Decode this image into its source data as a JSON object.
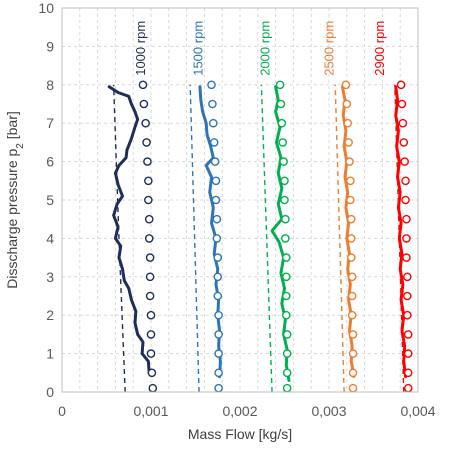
{
  "chart_data": {
    "type": "line",
    "xlabel": "Mass Flow [kg/s]",
    "ylabel_main": "Disscharge pressure p",
    "ylabel_sub": "2",
    "ylabel_unit": " [bar]",
    "xlim": [
      0,
      0.004
    ],
    "ylim": [
      0,
      10
    ],
    "x_ticks": [
      0,
      0.001,
      0.002,
      0.003,
      0.004
    ],
    "x_tick_labels": [
      "0",
      "0,001",
      "0,002",
      "0,003",
      "0,004"
    ],
    "y_ticks": [
      0,
      1,
      2,
      3,
      4,
      5,
      6,
      7,
      8,
      9,
      10
    ],
    "y_tick_labels": [
      "0",
      "1",
      "2",
      "3",
      "4",
      "5",
      "6",
      "7",
      "8",
      "9",
      "10"
    ],
    "grid": true,
    "series": [
      {
        "name": "1000 rpm",
        "color": "#1f2d5c",
        "label_x": 0.00093,
        "measured": [
          [
            0.00098,
            0.5
          ],
          [
            0.00097,
            0.8
          ],
          [
            0.0009,
            1.0
          ],
          [
            0.00091,
            1.3
          ],
          [
            0.00085,
            1.5
          ],
          [
            0.00082,
            1.8
          ],
          [
            0.00083,
            2.1
          ],
          [
            0.00078,
            2.4
          ],
          [
            0.00075,
            2.7
          ],
          [
            0.0007,
            2.9
          ],
          [
            0.00068,
            3.2
          ],
          [
            0.00064,
            3.5
          ],
          [
            0.00066,
            3.8
          ],
          [
            0.0006,
            4.0
          ],
          [
            0.00063,
            4.3
          ],
          [
            0.00058,
            4.6
          ],
          [
            0.00062,
            4.9
          ],
          [
            0.00068,
            5.1
          ],
          [
            0.00063,
            5.4
          ],
          [
            0.0006,
            5.7
          ],
          [
            0.00064,
            5.9
          ],
          [
            0.00072,
            6.1
          ],
          [
            0.00073,
            6.3
          ],
          [
            0.00078,
            6.6
          ],
          [
            0.00082,
            6.9
          ],
          [
            0.00085,
            7.1
          ],
          [
            0.00082,
            7.3
          ],
          [
            0.00078,
            7.5
          ],
          [
            0.00075,
            7.7
          ],
          [
            0.00063,
            7.8
          ],
          [
            0.00053,
            7.95
          ]
        ],
        "model_points": [
          [
            0.00102,
            0.1
          ],
          [
            0.00101,
            0.5
          ],
          [
            0.001,
            1.0
          ],
          [
            0.001,
            1.5
          ],
          [
            0.001,
            2.0
          ],
          [
            0.00099,
            2.5
          ],
          [
            0.00099,
            3.0
          ],
          [
            0.00099,
            3.5
          ],
          [
            0.00098,
            4.0
          ],
          [
            0.00098,
            4.5
          ],
          [
            0.00097,
            5.0
          ],
          [
            0.00097,
            5.5
          ],
          [
            0.00096,
            6.0
          ],
          [
            0.00095,
            6.5
          ],
          [
            0.00094,
            7.0
          ],
          [
            0.00092,
            7.5
          ],
          [
            0.00091,
            8.0
          ]
        ],
        "dashed": [
          [
            0.00071,
            0.0
          ],
          [
            0.00064,
            4.0
          ],
          [
            0.00058,
            8.0
          ]
        ]
      },
      {
        "name": "1500 rpm",
        "color": "#2e75b6",
        "label_x": 0.00158,
        "measured": [
          [
            0.00177,
            0.4
          ],
          [
            0.00178,
            0.8
          ],
          [
            0.00176,
            1.2
          ],
          [
            0.00177,
            1.6
          ],
          [
            0.00175,
            2.0
          ],
          [
            0.00176,
            2.4
          ],
          [
            0.00173,
            2.8
          ],
          [
            0.00175,
            3.2
          ],
          [
            0.00171,
            3.6
          ],
          [
            0.00173,
            4.0
          ],
          [
            0.00168,
            4.4
          ],
          [
            0.0017,
            4.8
          ],
          [
            0.00166,
            5.2
          ],
          [
            0.00168,
            5.6
          ],
          [
            0.00162,
            5.9
          ],
          [
            0.0017,
            6.1
          ],
          [
            0.00167,
            6.4
          ],
          [
            0.00163,
            6.7
          ],
          [
            0.00162,
            7.0
          ],
          [
            0.00158,
            7.3
          ],
          [
            0.00156,
            7.6
          ],
          [
            0.00155,
            7.95
          ]
        ],
        "model_points": [
          [
            0.00176,
            0.1
          ],
          [
            0.00176,
            0.5
          ],
          [
            0.00176,
            1.0
          ],
          [
            0.00176,
            1.5
          ],
          [
            0.00176,
            2.0
          ],
          [
            0.00175,
            2.5
          ],
          [
            0.00175,
            3.0
          ],
          [
            0.00175,
            3.5
          ],
          [
            0.00174,
            4.0
          ],
          [
            0.00174,
            4.5
          ],
          [
            0.00173,
            5.0
          ],
          [
            0.00173,
            5.5
          ],
          [
            0.00172,
            6.0
          ],
          [
            0.00171,
            6.5
          ],
          [
            0.0017,
            7.0
          ],
          [
            0.00169,
            7.5
          ],
          [
            0.00168,
            8.0
          ]
        ],
        "dashed": [
          [
            0.00154,
            0.0
          ],
          [
            0.00149,
            4.0
          ],
          [
            0.00144,
            8.0
          ]
        ]
      },
      {
        "name": "2000 rpm",
        "color": "#00b050",
        "label_x": 0.00233,
        "measured": [
          [
            0.00255,
            0.3
          ],
          [
            0.00252,
            0.7
          ],
          [
            0.00253,
            1.1
          ],
          [
            0.00249,
            1.5
          ],
          [
            0.00251,
            1.9
          ],
          [
            0.00247,
            2.3
          ],
          [
            0.0025,
            2.7
          ],
          [
            0.00246,
            3.1
          ],
          [
            0.00249,
            3.5
          ],
          [
            0.00244,
            3.9
          ],
          [
            0.00236,
            4.2
          ],
          [
            0.00247,
            4.5
          ],
          [
            0.00243,
            4.9
          ],
          [
            0.00247,
            5.3
          ],
          [
            0.00243,
            5.7
          ],
          [
            0.00246,
            6.1
          ],
          [
            0.00241,
            6.5
          ],
          [
            0.00245,
            6.9
          ],
          [
            0.0024,
            7.3
          ],
          [
            0.00243,
            7.6
          ],
          [
            0.0024,
            7.95
          ]
        ],
        "model_points": [
          [
            0.00253,
            0.1
          ],
          [
            0.00253,
            0.5
          ],
          [
            0.00253,
            1.0
          ],
          [
            0.00253,
            1.5
          ],
          [
            0.00252,
            2.0
          ],
          [
            0.00252,
            2.5
          ],
          [
            0.00252,
            3.0
          ],
          [
            0.00252,
            3.5
          ],
          [
            0.00251,
            4.0
          ],
          [
            0.00251,
            4.5
          ],
          [
            0.0025,
            5.0
          ],
          [
            0.0025,
            5.5
          ],
          [
            0.00249,
            6.0
          ],
          [
            0.00248,
            6.5
          ],
          [
            0.00247,
            7.0
          ],
          [
            0.00246,
            7.5
          ],
          [
            0.00245,
            8.0
          ]
        ],
        "dashed": [
          [
            0.00236,
            0.0
          ],
          [
            0.0023,
            4.0
          ],
          [
            0.00224,
            8.0
          ]
        ]
      },
      {
        "name": "2500 rpm",
        "color": "#ed7d31",
        "label_x": 0.00305,
        "measured": [
          [
            0.00328,
            0.4
          ],
          [
            0.00325,
            0.8
          ],
          [
            0.00326,
            1.2
          ],
          [
            0.00323,
            1.6
          ],
          [
            0.00325,
            2.0
          ],
          [
            0.00322,
            2.4
          ],
          [
            0.00324,
            2.8
          ],
          [
            0.00321,
            3.2
          ],
          [
            0.00323,
            3.6
          ],
          [
            0.0032,
            4.0
          ],
          [
            0.00322,
            4.4
          ],
          [
            0.00319,
            4.8
          ],
          [
            0.00321,
            5.2
          ],
          [
            0.00318,
            5.6
          ],
          [
            0.0032,
            6.0
          ],
          [
            0.00317,
            6.4
          ],
          [
            0.00319,
            6.8
          ],
          [
            0.00316,
            7.2
          ],
          [
            0.00318,
            7.6
          ],
          [
            0.00315,
            7.95
          ]
        ],
        "model_points": [
          [
            0.00327,
            0.1
          ],
          [
            0.00327,
            0.5
          ],
          [
            0.00327,
            1.0
          ],
          [
            0.00327,
            1.5
          ],
          [
            0.00326,
            2.0
          ],
          [
            0.00326,
            2.5
          ],
          [
            0.00326,
            3.0
          ],
          [
            0.00325,
            3.5
          ],
          [
            0.00325,
            4.0
          ],
          [
            0.00325,
            4.5
          ],
          [
            0.00324,
            5.0
          ],
          [
            0.00324,
            5.5
          ],
          [
            0.00323,
            6.0
          ],
          [
            0.00322,
            6.5
          ],
          [
            0.00321,
            7.0
          ],
          [
            0.0032,
            7.5
          ],
          [
            0.00319,
            8.0
          ]
        ],
        "dashed": [
          [
            0.00317,
            0.0
          ],
          [
            0.00312,
            4.0
          ],
          [
            0.00307,
            8.0
          ]
        ]
      },
      {
        "name": "2900 rpm",
        "color": "#ff0000",
        "label_x": 0.00362,
        "measured": [
          [
            0.00386,
            0.4
          ],
          [
            0.00384,
            0.8
          ],
          [
            0.00385,
            1.2
          ],
          [
            0.00382,
            1.6
          ],
          [
            0.00384,
            2.0
          ],
          [
            0.00381,
            2.4
          ],
          [
            0.00383,
            2.8
          ],
          [
            0.0038,
            3.2
          ],
          [
            0.00382,
            3.6
          ],
          [
            0.00379,
            4.0
          ],
          [
            0.00381,
            4.4
          ],
          [
            0.00378,
            4.8
          ],
          [
            0.0038,
            5.2
          ],
          [
            0.00377,
            5.6
          ],
          [
            0.00379,
            6.0
          ],
          [
            0.00376,
            6.4
          ],
          [
            0.00378,
            6.8
          ],
          [
            0.00375,
            7.2
          ],
          [
            0.00377,
            7.6
          ],
          [
            0.00375,
            7.95
          ]
        ],
        "model_points": [
          [
            0.00389,
            0.1
          ],
          [
            0.00389,
            0.5
          ],
          [
            0.00389,
            1.0
          ],
          [
            0.00389,
            1.5
          ],
          [
            0.00388,
            2.0
          ],
          [
            0.00388,
            2.5
          ],
          [
            0.00388,
            3.0
          ],
          [
            0.00387,
            3.5
          ],
          [
            0.00387,
            4.0
          ],
          [
            0.00387,
            4.5
          ],
          [
            0.00386,
            5.0
          ],
          [
            0.00386,
            5.5
          ],
          [
            0.00385,
            6.0
          ],
          [
            0.00384,
            6.5
          ],
          [
            0.00383,
            7.0
          ],
          [
            0.00382,
            7.5
          ],
          [
            0.00381,
            8.0
          ]
        ],
        "dashed": [
          [
            0.00384,
            0.0
          ],
          [
            0.00379,
            4.0
          ],
          [
            0.00374,
            8.0
          ]
        ]
      }
    ]
  }
}
